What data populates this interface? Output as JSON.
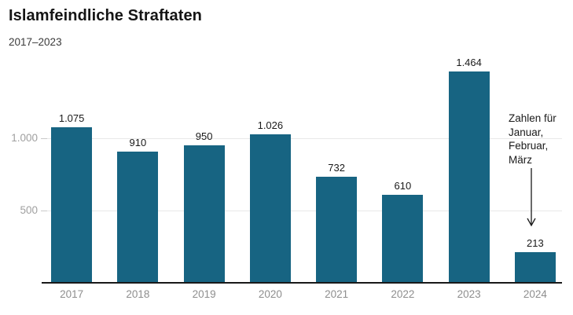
{
  "header": {
    "title": "Islamfeindliche Straftaten",
    "subtitle": "2017–2023"
  },
  "annotation": {
    "text": "Zahlen für\nJanuar,\nFebruar,\nMärz"
  },
  "chart_data": {
    "type": "bar",
    "title": "Islamfeindliche Straftaten",
    "subtitle": "2017–2023",
    "categories": [
      "2017",
      "2018",
      "2019",
      "2020",
      "2021",
      "2022",
      "2023",
      "2024"
    ],
    "values": [
      1075,
      910,
      950,
      1026,
      732,
      610,
      1464,
      213
    ],
    "value_labels": [
      "1.075",
      "910",
      "950",
      "1.026",
      "732",
      "610",
      "1.464",
      "213"
    ],
    "y_ticks": [
      {
        "value": 500,
        "label": "500"
      },
      {
        "value": 1000,
        "label": "1.000"
      }
    ],
    "ylim": [
      0,
      1500
    ],
    "grid": "horizontal",
    "legend": "none",
    "annotation": {
      "text": "Zahlen für Januar, Februar, März",
      "target_category": "2024"
    },
    "colors": {
      "bar": "#176482",
      "axis_line": "#191919",
      "gridline": "#e9e9e9",
      "axis_tick_label": "#a0a0a0",
      "category_label": "#8e8e8e",
      "value_label": "#1a1a1a"
    }
  }
}
